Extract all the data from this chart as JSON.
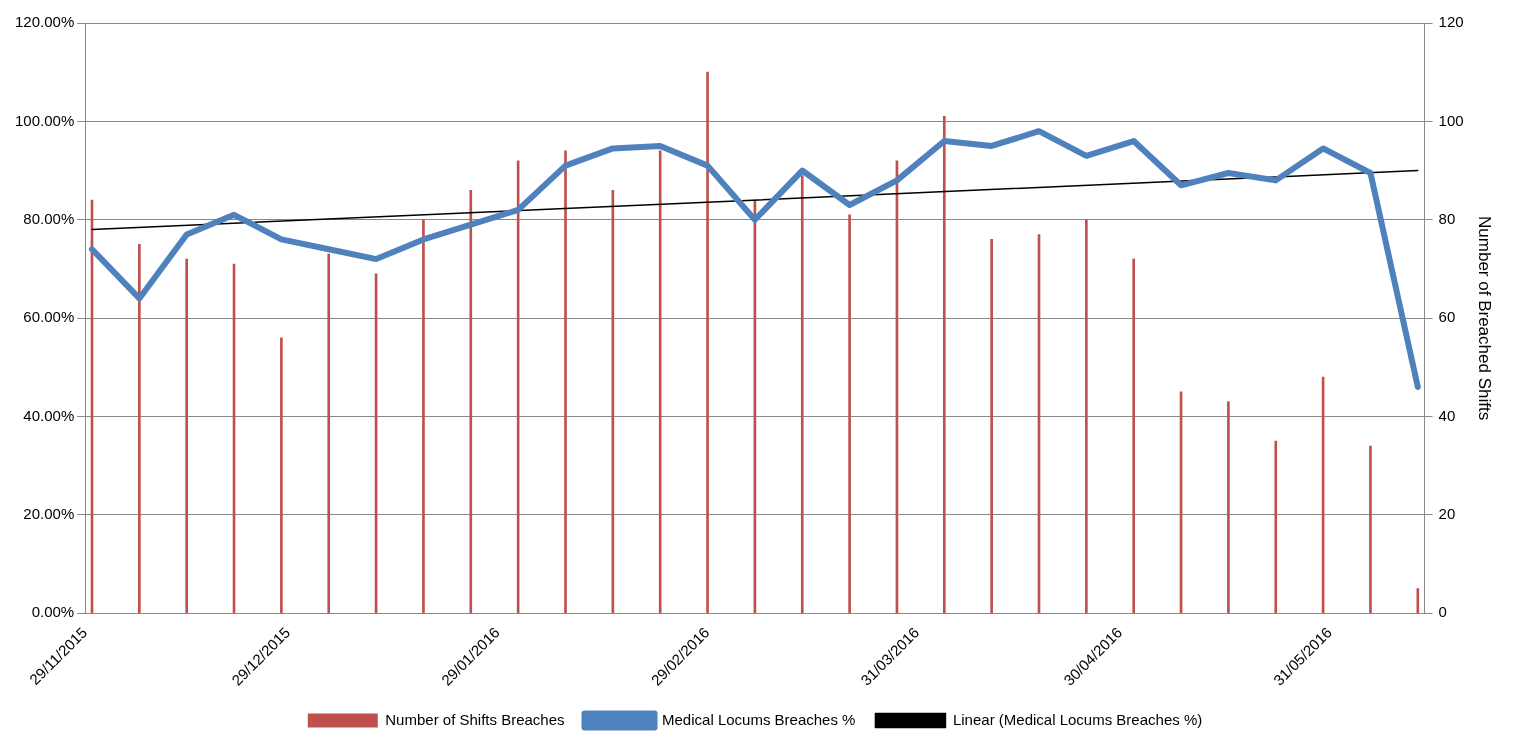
{
  "chart_data": {
    "type": "bar",
    "ylabel": null,
    "y2label": "Number of Breached Shifts",
    "x": [
      "2015-11-30",
      "2015-12-07",
      "2015-12-14",
      "2015-12-21",
      "2015-12-28",
      "2016-01-04",
      "2016-01-11",
      "2016-01-18",
      "2016-01-25",
      "2016-02-01",
      "2016-02-08",
      "2016-02-15",
      "2016-02-22",
      "2016-02-29",
      "2016-03-07",
      "2016-03-14",
      "2016-03-21",
      "2016-03-28",
      "2016-04-04",
      "2016-04-11",
      "2016-04-18",
      "2016-04-25",
      "2016-05-02",
      "2016-05-09",
      "2016-05-16",
      "2016-05-23",
      "2016-05-30",
      "2016-06-06",
      "2016-06-13"
    ],
    "series": [
      {
        "name": "Number of Shifts Breaches",
        "axis": "y2",
        "color": "#c0504d",
        "values": [
          84,
          75,
          72,
          71,
          56,
          73,
          69,
          80,
          86,
          92,
          94,
          86,
          94,
          110,
          84,
          89,
          81,
          92,
          101,
          76,
          77,
          80,
          72,
          45,
          43,
          35,
          48,
          34,
          5
        ]
      },
      {
        "name": "Medical Locums Breaches %",
        "type": "line",
        "axis": "y",
        "color": "#4f81bd",
        "values": [
          74,
          64,
          77,
          81,
          76,
          74,
          72,
          76,
          79,
          82,
          91,
          94.5,
          95,
          91,
          80,
          90,
          83,
          88,
          96,
          95,
          98,
          93,
          96,
          87,
          89.5,
          88,
          94.5,
          89.5,
          46
        ]
      },
      {
        "name": "Linear (Medical Locums Breaches %)",
        "type": "line",
        "axis": "y",
        "color": "#000000",
        "x": [
          "2015-11-30",
          "2016-06-13"
        ],
        "values": [
          78,
          90
        ]
      }
    ],
    "xlim": [
      "2015-11-29",
      "2016-06-14"
    ],
    "xticks": [
      {
        "value": "2015-11-29",
        "label": "29/11/2015"
      },
      {
        "value": "2015-12-29",
        "label": "29/12/2015"
      },
      {
        "value": "2016-01-29",
        "label": "29/01/2016"
      },
      {
        "value": "2016-02-29",
        "label": "29/02/2016"
      },
      {
        "value": "2016-03-31",
        "label": "31/03/2016"
      },
      {
        "value": "2016-04-30",
        "label": "30/04/2016"
      },
      {
        "value": "2016-05-31",
        "label": "31/05/2016"
      }
    ],
    "ylim": [
      0,
      120
    ],
    "yticks": [
      {
        "value": 0,
        "label": "0.00%"
      },
      {
        "value": 20,
        "label": "20.00%"
      },
      {
        "value": 40,
        "label": "40.00%"
      },
      {
        "value": 60,
        "label": "60.00%"
      },
      {
        "value": 80,
        "label": "80.00%"
      },
      {
        "value": 100,
        "label": "100.00%"
      },
      {
        "value": 120,
        "label": "120.00%"
      }
    ],
    "y2lim": [
      0,
      120
    ],
    "y2ticks": [
      0,
      20,
      40,
      60,
      80,
      100,
      120
    ],
    "grid": "y",
    "legend": "bottom"
  }
}
